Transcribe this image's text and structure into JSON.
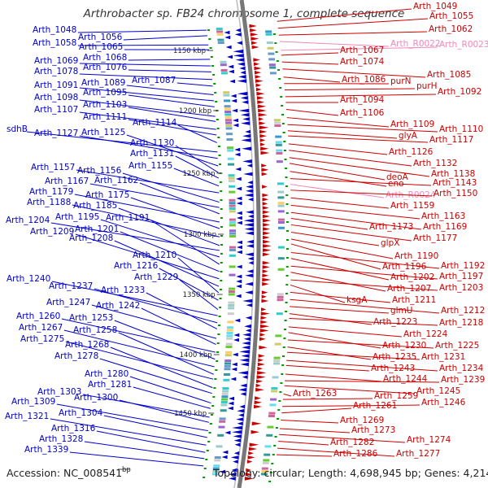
{
  "title": "Arthrobacter sp. FB24 chromosome 1, complete sequence",
  "footer": {
    "accession": "Accession: NC_008541",
    "bp_mark": "bp",
    "topology": "Topology: circular; Length: 4,698,945 bp; Genes: 4,214"
  },
  "colors": {
    "forward": "#cc0000",
    "reverse": "#0000cc",
    "rna": "#ee88bb",
    "backbone": "#888888",
    "tick": "#009900"
  },
  "scale_ticks": [
    "1150 kbp",
    "1200 kbp",
    "1250 kbp",
    "1300 kbp",
    "1350 kbp",
    "1400 kbp",
    "1450 kbp"
  ],
  "left_labels": [
    "Arth_1048",
    "Arth_1056",
    "Arth_1058",
    "Arth_1065",
    "Arth_1068",
    "Arth_1069",
    "Arth_1076",
    "Arth_1078",
    "Arth_1087",
    "Arth_1089",
    "Arth_1091",
    "Arth_1095",
    "Arth_1098",
    "Arth_1103",
    "Arth_1107",
    "Arth_1111",
    "Arth_1114",
    "sdhB",
    "Arth_1127",
    "Arth_1125",
    "Arth_1130",
    "Arth_1131",
    "Arth_1155",
    "Arth_1157",
    "Arth_1156",
    "Arth_1167",
    "Arth_1162",
    "Arth_1179",
    "Arth_1175",
    "Arth_1188",
    "Arth_1185",
    "Arth_1204",
    "Arth_1195",
    "Arth_1191",
    "Arth_1201",
    "Arth_1209",
    "Arth_1208",
    "Arth_1210",
    "Arth_1216",
    "Arth_1229",
    "Arth_1240",
    "Arth_1237",
    "Arth_1233",
    "Arth_1247",
    "Arth_1242",
    "Arth_1260",
    "Arth_1253",
    "Arth_1267",
    "Arth_1258",
    "Arth_1275",
    "Arth_1268",
    "Arth_1278",
    "Arth_1280",
    "Arth_1281",
    "Arth_1303",
    "Arth_1300",
    "Arth_1309",
    "Arth_1304",
    "Arth_1321",
    "Arth_1316",
    "Arth_1328",
    "Arth_1339"
  ],
  "right_labels": [
    "Arth_1049",
    "Arth_1055",
    "Arth_1062",
    "Arth_R0022",
    "Arth_R0023",
    "Arth_1067",
    "Arth_1074",
    "Arth_1085",
    "Arth_1086",
    "purN",
    "purH",
    "Arth_1092",
    "Arth_1094",
    "Arth_1106",
    "Arth_1109",
    "Arth_1110",
    "glyA",
    "Arth_1117",
    "Arth_1126",
    "Arth_1132",
    "Arth_1138",
    "deoA",
    "eno",
    "Arth_1143",
    "Arth_R0024",
    "Arth_1150",
    "Arth_1159",
    "Arth_1163",
    "Arth_1169",
    "Arth_1173",
    "Arth_1177",
    "glpX",
    "Arth_1190",
    "Arth_1196",
    "Arth_1192",
    "Arth_1202",
    "Arth_1197",
    "Arth_1207",
    "Arth_1203",
    "ksgA",
    "Arth_1211",
    "Arth_1212",
    "glmU",
    "Arth_1223",
    "Arth_1218",
    "Arth_1224",
    "Arth_1230",
    "Arth_1225",
    "Arth_1235",
    "Arth_1231",
    "Arth_1234",
    "Arth_1243",
    "Arth_1244",
    "Arth_1239",
    "Arth_1245",
    "Arth_1263",
    "Arth_1259",
    "Arth_1246",
    "Arth_1261",
    "Arth_1269",
    "Arth_1273",
    "Arth_1274",
    "Arth_1282",
    "Arth_1277",
    "Arth_1286"
  ]
}
